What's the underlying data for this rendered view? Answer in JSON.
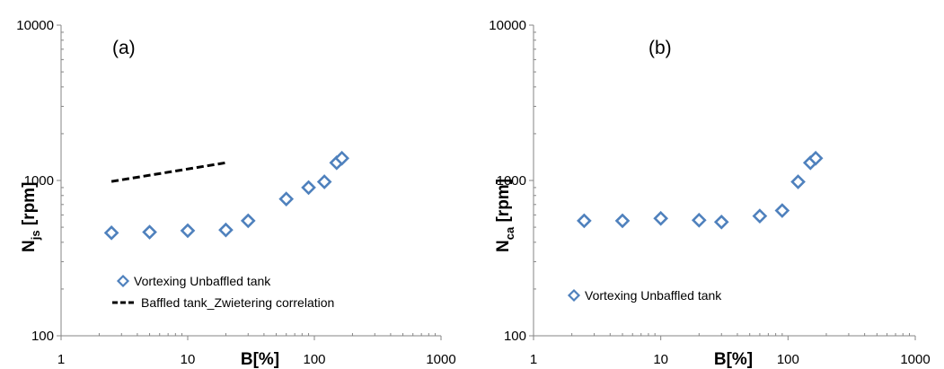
{
  "chart_data": [
    {
      "type": "scatter",
      "panel_label": "(a)",
      "xlabel": "B[%]",
      "ylabel": "N",
      "ylabel_sub": "js",
      "ylabel_unit": " [rpm]",
      "xscale": "log",
      "yscale": "log",
      "xlim": [
        1,
        1000
      ],
      "ylim": [
        100,
        10000
      ],
      "xticks": [
        "1",
        "10",
        "100",
        "1000"
      ],
      "yticks": [
        "100",
        "1000",
        "10000"
      ],
      "grid": false,
      "legend_position": "bottom-left",
      "series": [
        {
          "name": "Vortexing Unbaffled tank",
          "marker": "diamond-open",
          "color": "#4f81bd",
          "points": [
            [
              2.5,
              460
            ],
            [
              5,
              465
            ],
            [
              10,
              475
            ],
            [
              20,
              480
            ],
            [
              30,
              550
            ],
            [
              60,
              760
            ],
            [
              90,
              900
            ],
            [
              120,
              980
            ],
            [
              150,
              1300
            ],
            [
              165,
              1390
            ]
          ]
        },
        {
          "name": "Baffled tank_Zwietering correlation",
          "line": "dashed",
          "color": "#000000",
          "points": [
            [
              2.5,
              985
            ],
            [
              20,
              1300
            ]
          ]
        }
      ]
    },
    {
      "type": "scatter",
      "panel_label": "(b)",
      "xlabel": "B[%]",
      "ylabel": "N",
      "ylabel_sub": "ca",
      "ylabel_unit": " [rpm]",
      "xscale": "log",
      "yscale": "log",
      "xlim": [
        1,
        1000
      ],
      "ylim": [
        100,
        10000
      ],
      "xticks": [
        "1",
        "10",
        "100",
        "1000"
      ],
      "yticks": [
        "100",
        "1000",
        "10000"
      ],
      "grid": false,
      "legend_position": "bottom-left",
      "series": [
        {
          "name": "Vortexing Unbaffled tank",
          "marker": "diamond-open",
          "color": "#4f81bd",
          "points": [
            [
              2.5,
              550
            ],
            [
              5,
              550
            ],
            [
              10,
              570
            ],
            [
              20,
              555
            ],
            [
              30,
              540
            ],
            [
              60,
              590
            ],
            [
              90,
              640
            ],
            [
              120,
              980
            ],
            [
              150,
              1300
            ],
            [
              165,
              1390
            ]
          ]
        }
      ]
    }
  ]
}
